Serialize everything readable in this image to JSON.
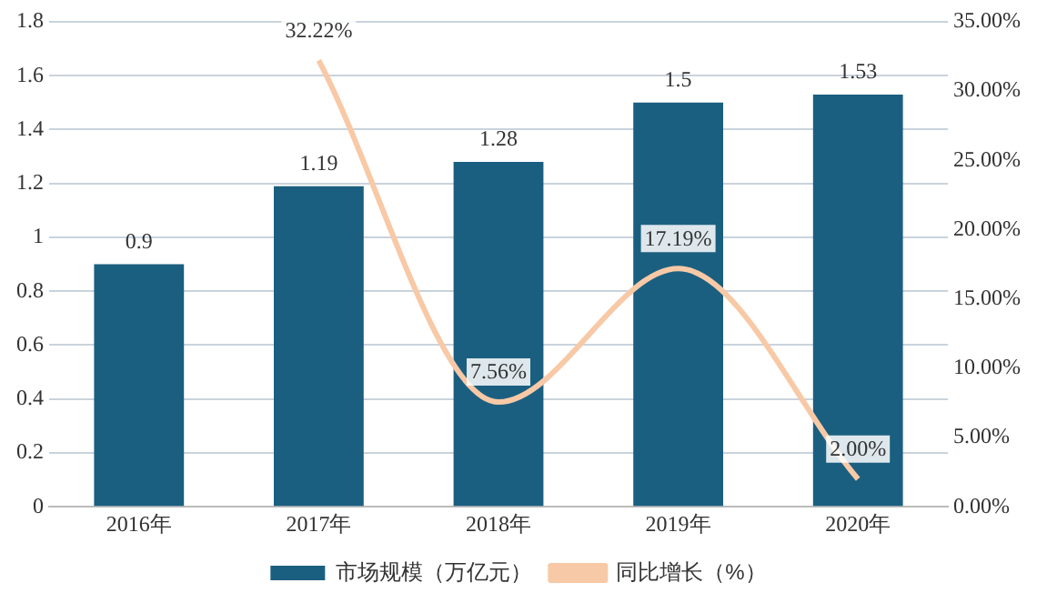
{
  "chart_data": {
    "type": "bar",
    "categories": [
      "2016年",
      "2017年",
      "2018年",
      "2019年",
      "2020年"
    ],
    "series": [
      {
        "name": "市场规模（万亿元）",
        "color": "#1b5f80",
        "values": [
          0.9,
          1.19,
          1.28,
          1.5,
          1.53
        ],
        "value_labels": [
          "0.9",
          "1.19",
          "1.28",
          "1.5",
          "1.53"
        ]
      },
      {
        "name": "同比增长（%）",
        "type": "line",
        "axis": "y2",
        "color": "#f8c9a6",
        "values": [
          null,
          32.22,
          7.56,
          17.19,
          2.0
        ],
        "value_labels": [
          null,
          "32.22%",
          "7.56%",
          "17.19%",
          "2.00%"
        ]
      }
    ],
    "ylim": [
      0,
      1.8
    ],
    "yticks": [
      0,
      0.2,
      0.4,
      0.6,
      0.8,
      1,
      1.2,
      1.4,
      1.6,
      1.8
    ],
    "y2lim": [
      0,
      35
    ],
    "y2ticks": [
      {
        "value": 0,
        "label": "0.00%"
      },
      {
        "value": 5,
        "label": "5.00%"
      },
      {
        "value": 10,
        "label": "10.00%"
      },
      {
        "value": 15,
        "label": "15.00%"
      },
      {
        "value": 20,
        "label": "20.00%"
      },
      {
        "value": 25,
        "label": "25.00%"
      },
      {
        "value": 30,
        "label": "30.00%"
      },
      {
        "value": 35,
        "label": "35.00%"
      }
    ],
    "grid": "y",
    "legend": "bottom",
    "marker": "none"
  }
}
